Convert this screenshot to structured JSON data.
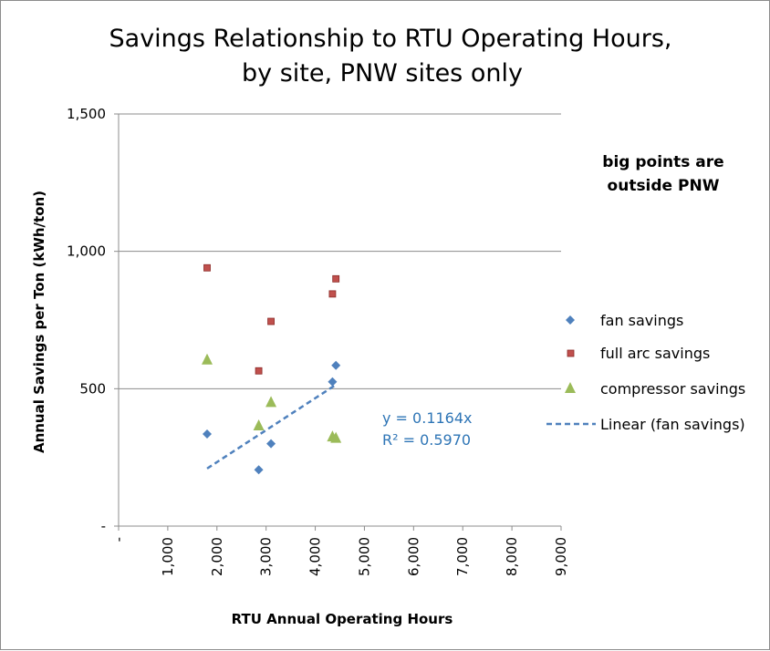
{
  "chart_data": {
    "type": "scatter",
    "title_lines": [
      "Savings Relationship to RTU Operating Hours,",
      "by site, PNW sites only"
    ],
    "xlabel": "RTU Annual Operating Hours",
    "ylabel": "Annual Savings per Ton (kWh/ton)",
    "xlim": [
      0,
      9000
    ],
    "ylim": [
      0,
      1500
    ],
    "x_ticks": [
      0,
      1000,
      2000,
      3000,
      4000,
      5000,
      6000,
      7000,
      8000,
      9000
    ],
    "x_tick_labels": [
      "-",
      "1,000",
      "2,000",
      "3,000",
      "4,000",
      "5,000",
      "6,000",
      "7,000",
      "8,000",
      "9,000"
    ],
    "y_ticks": [
      0,
      500,
      1000,
      1500
    ],
    "y_tick_labels": [
      "-",
      "500",
      "1,000",
      "1,500"
    ],
    "grid": "horizontal",
    "legend_position": "right",
    "annotation": [
      "big points are",
      "outside PNW"
    ],
    "series": [
      {
        "name": "fan savings",
        "marker": "diamond",
        "color": "#4f81bd",
        "points": [
          [
            1800,
            335
          ],
          [
            2850,
            205
          ],
          [
            3100,
            300
          ],
          [
            4350,
            525
          ],
          [
            4420,
            585
          ]
        ]
      },
      {
        "name": "full arc savings",
        "marker": "square",
        "color": "#c0504d",
        "points": [
          [
            1800,
            940
          ],
          [
            2850,
            565
          ],
          [
            3100,
            745
          ],
          [
            4350,
            845
          ],
          [
            4420,
            900
          ]
        ]
      },
      {
        "name": "compressor savings",
        "marker": "triangle",
        "color": "#9bbb59",
        "points": [
          [
            1800,
            605
          ],
          [
            2850,
            365
          ],
          [
            3100,
            450
          ],
          [
            4350,
            325
          ],
          [
            4420,
            320
          ]
        ]
      }
    ],
    "trendline": {
      "name": "Linear (fan savings)",
      "color": "#4f81bd",
      "style": "dashed",
      "slope": 0.1164,
      "x_range": [
        1800,
        4420
      ],
      "equation": "y = 0.1164x",
      "r2": "R² = 0.5970"
    }
  }
}
